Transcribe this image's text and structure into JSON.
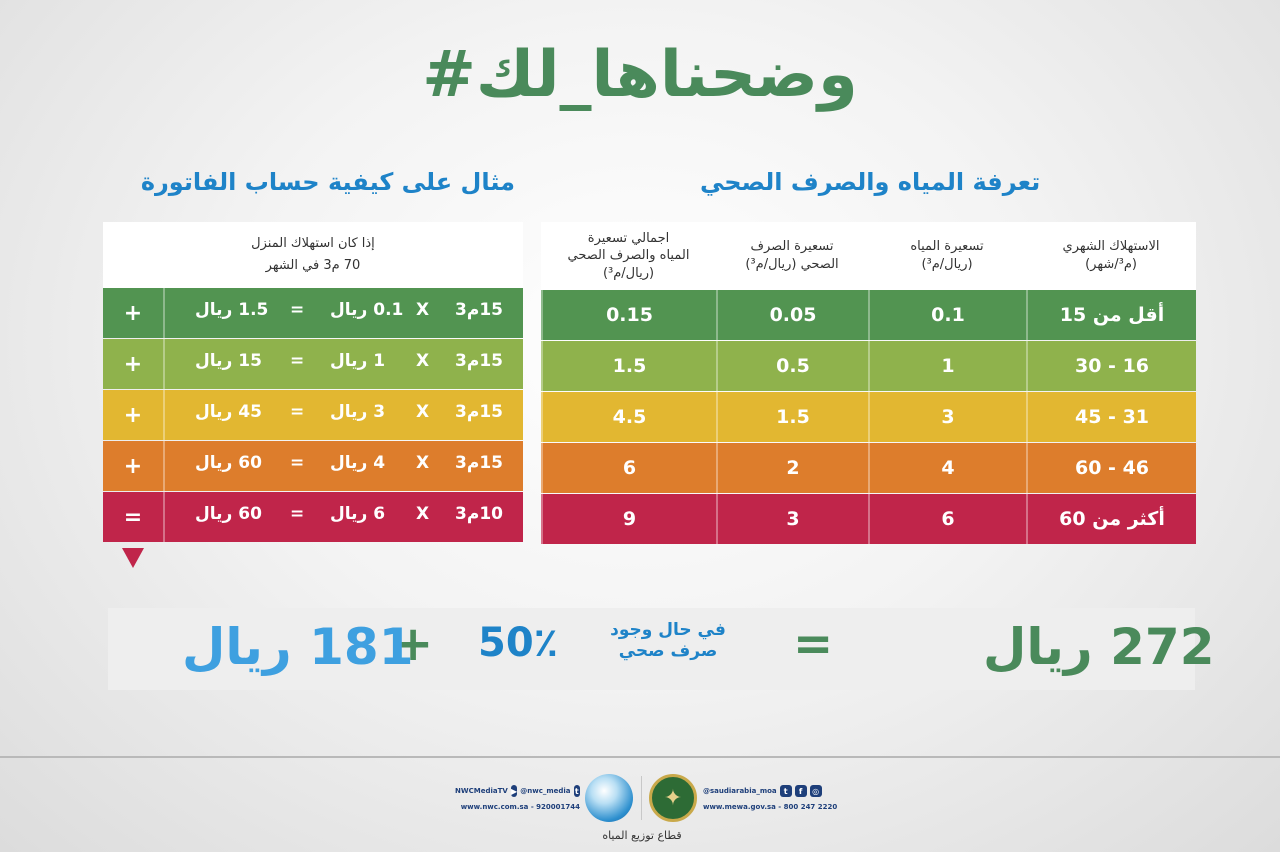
{
  "hashtag": "#وضحناها_لك",
  "tariff_title": "تعرفة المياه والصرف الصحي",
  "example_title": "مثال على كيفية حساب الفاتورة",
  "tariff_table": {
    "headers": {
      "consumption": [
        "الاستهلاك الشهري",
        "(م³/شهر)"
      ],
      "water": [
        "تسعيرة المياه",
        "(ريال/م³)"
      ],
      "sewage": [
        "تسعيرة الصرف",
        "الصحي (ريال/م³)"
      ],
      "total": [
        "اجمالي تسعيرة",
        "المياه والصرف الصحي",
        "(ريال/م³)"
      ]
    },
    "rows": [
      {
        "consumption": "أقل من 15",
        "water": "0.1",
        "sewage": "0.05",
        "total": "0.15",
        "color": "#529451"
      },
      {
        "consumption": "16 - 30",
        "water": "1",
        "sewage": "0.5",
        "total": "1.5",
        "color": "#8fb24c"
      },
      {
        "consumption": "31 - 45",
        "water": "3",
        "sewage": "1.5",
        "total": "4.5",
        "color": "#e2b731"
      },
      {
        "consumption": "46 - 60",
        "water": "4",
        "sewage": "2",
        "total": "6",
        "color": "#dd7d2c"
      },
      {
        "consumption": "أكثر من 60",
        "water": "6",
        "sewage": "3",
        "total": "9",
        "color": "#c0254a"
      }
    ]
  },
  "example_table": {
    "header_line1": "إذا كان استهلاك المنزل",
    "header_line2": "70 م3 في الشهر",
    "rows": [
      {
        "volume": "15م3",
        "x": "X",
        "rate": "0.1 ريال",
        "eq": "=",
        "result": "1.5 ريال",
        "op": "+"
      },
      {
        "volume": "15م3",
        "x": "X",
        "rate": "1 ريال",
        "eq": "=",
        "result": "15 ريال",
        "op": "+"
      },
      {
        "volume": "15م3",
        "x": "X",
        "rate": "3 ريال",
        "eq": "=",
        "result": "45 ريال",
        "op": "+"
      },
      {
        "volume": "15م3",
        "x": "X",
        "rate": "4 ريال",
        "eq": "=",
        "result": "60 ريال",
        "op": "+"
      },
      {
        "volume": "10م3",
        "x": "X",
        "rate": "6 ريال",
        "eq": "=",
        "result": "60 ريال",
        "op": "="
      }
    ]
  },
  "summary": {
    "total": "272 ريال",
    "equals": "=",
    "condition_line1": "في حال وجود",
    "condition_line2": "صرف صحي",
    "percent": "50٪",
    "plus": "+",
    "sum": "181 ريال"
  },
  "footer": {
    "nwc_social": "NWCMediaTV",
    "nwc_handle": "@nwc_media",
    "nwc_contact": "www.nwc.com.sa - 920001744",
    "sector": "قطاع توزيع المياه",
    "mewa_handle": "@saudiarabia_moa",
    "mewa_contact": "www.mewa.gov.sa - 800 247 2220"
  }
}
